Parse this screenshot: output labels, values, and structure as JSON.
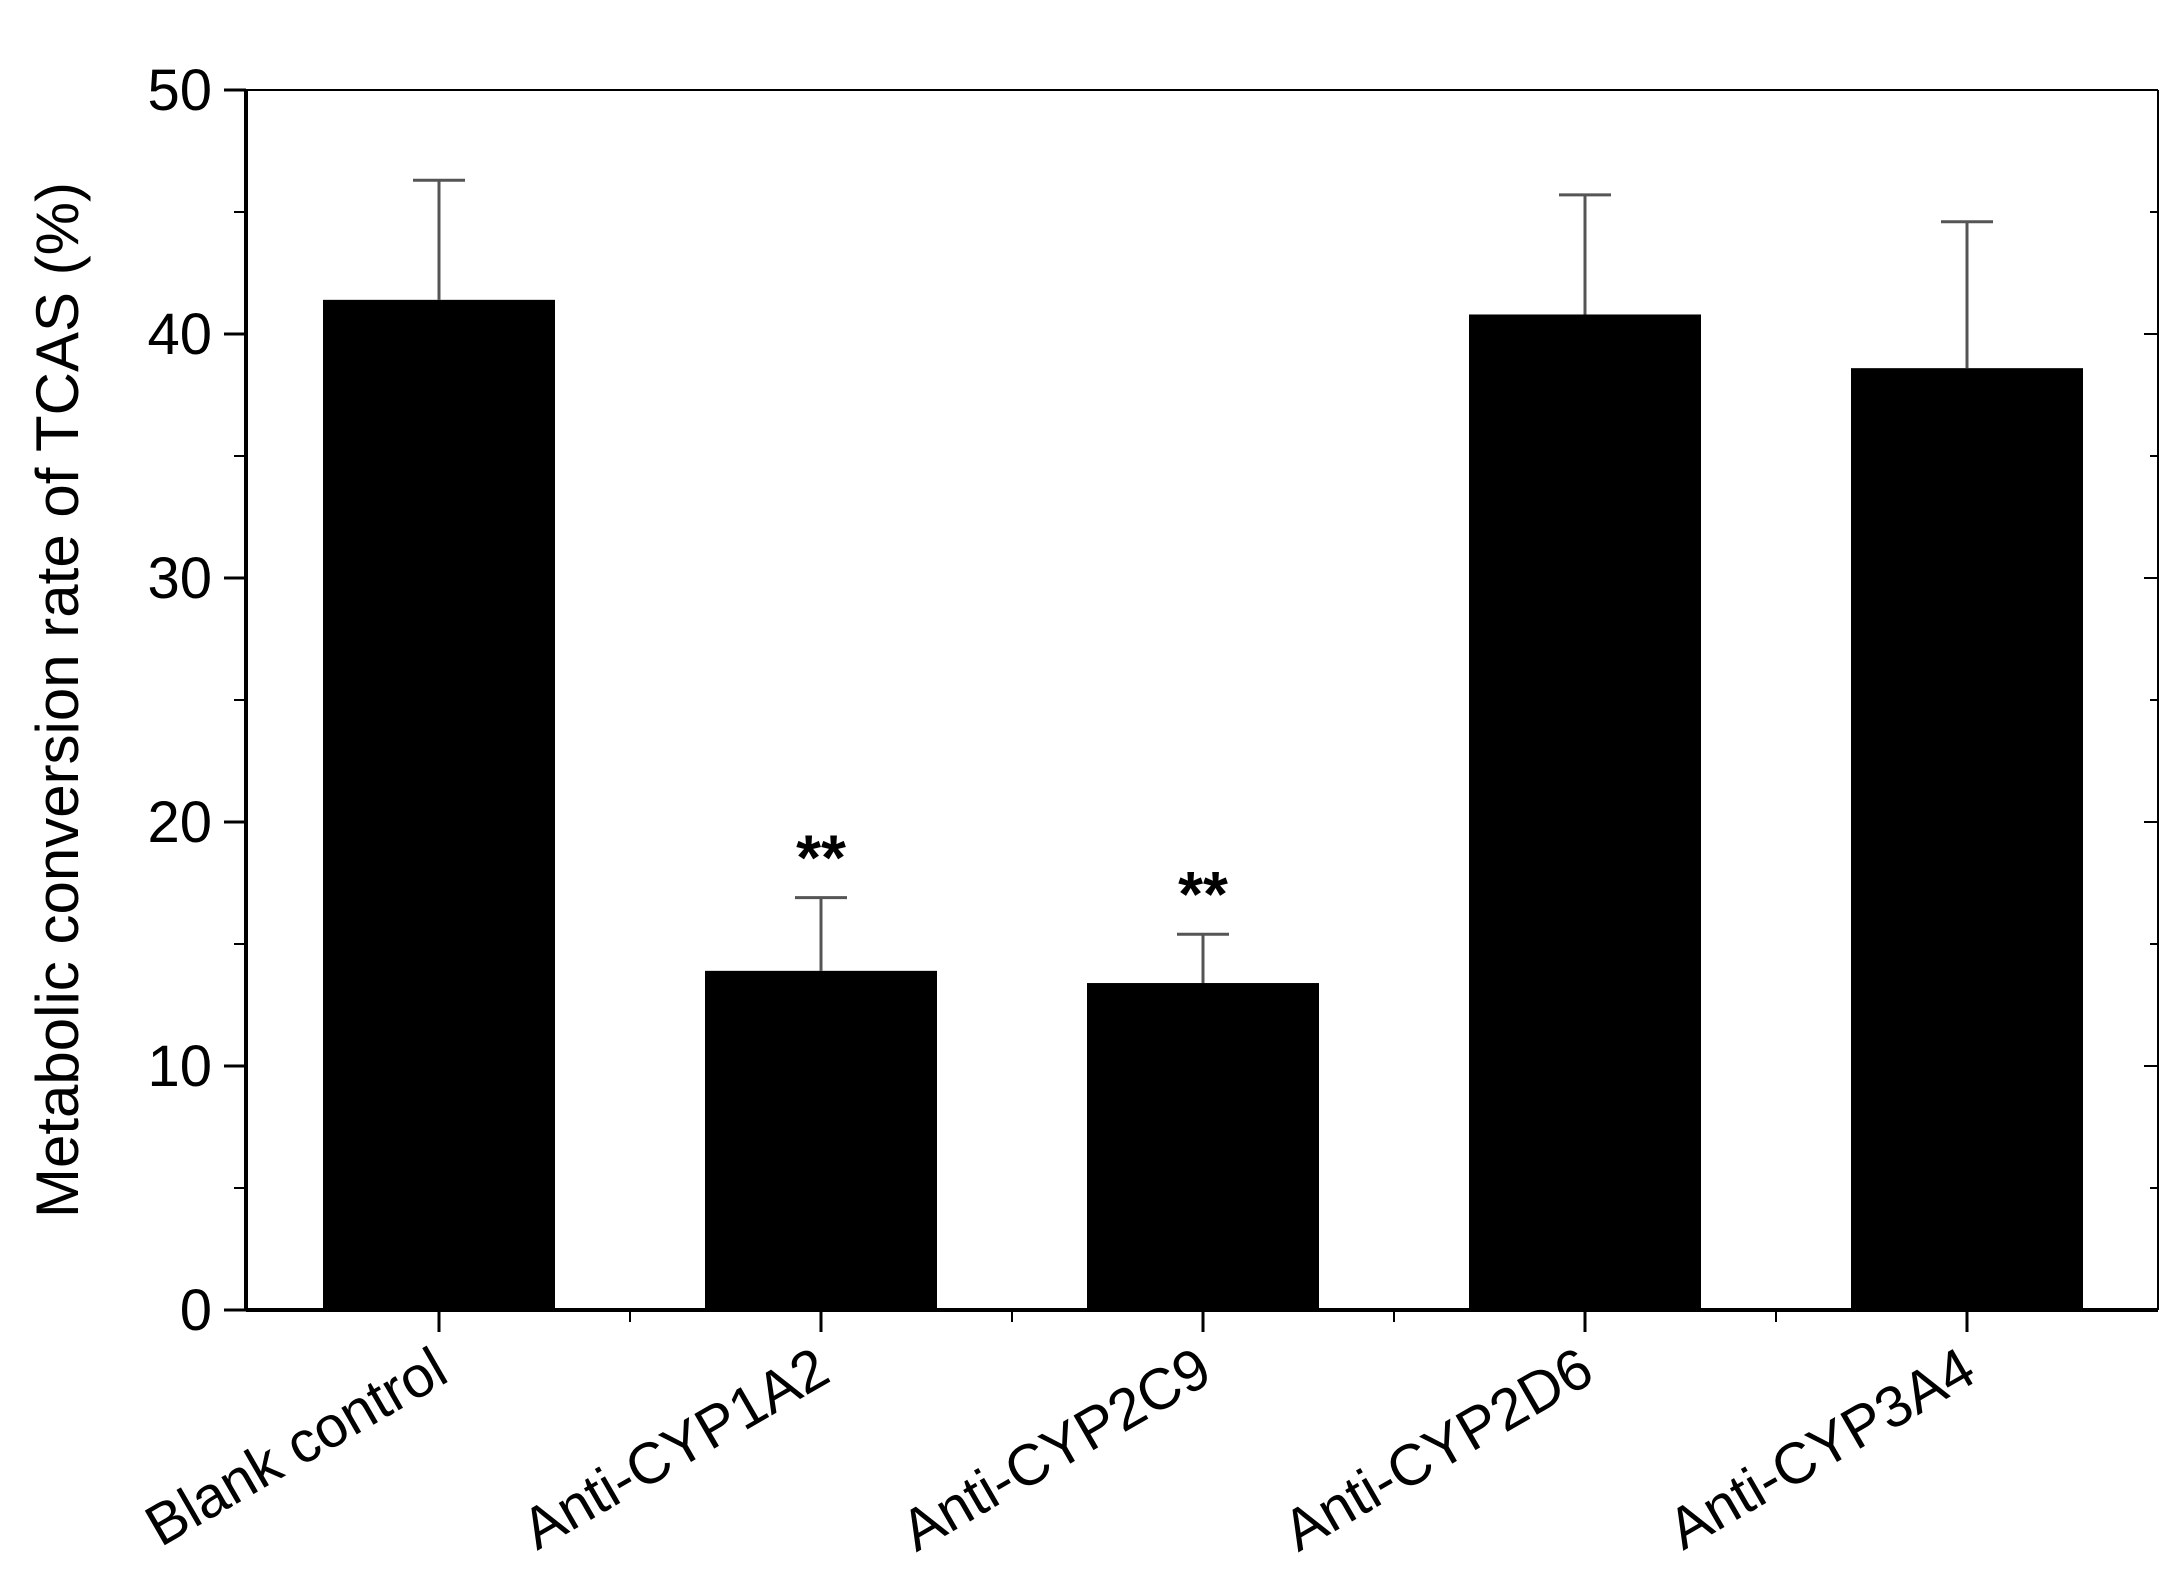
{
  "chart_data": {
    "type": "bar",
    "title": "",
    "xlabel": "",
    "ylabel": "Metabolic conversion rate of TCAS (%)",
    "ylim": [
      0,
      50
    ],
    "yticks": [
      0,
      10,
      20,
      30,
      40,
      50
    ],
    "ytick_labels": [
      "0",
      "10",
      "20",
      "30",
      "40",
      "50"
    ],
    "categories": [
      "Blank control",
      "Anti-CYP1A2",
      "Anti-CYP2C9",
      "Anti-CYP2D6",
      "Anti-CYP3A4"
    ],
    "values": [
      41.4,
      13.9,
      13.4,
      40.8,
      38.6
    ],
    "error_upper": [
      4.9,
      3.0,
      2.0,
      4.9,
      6.0
    ],
    "annotations": [
      "",
      "**",
      "**",
      "",
      ""
    ],
    "bar_color": "#000000",
    "error_bar_color": "#555555",
    "grid": false,
    "legend": "none"
  }
}
